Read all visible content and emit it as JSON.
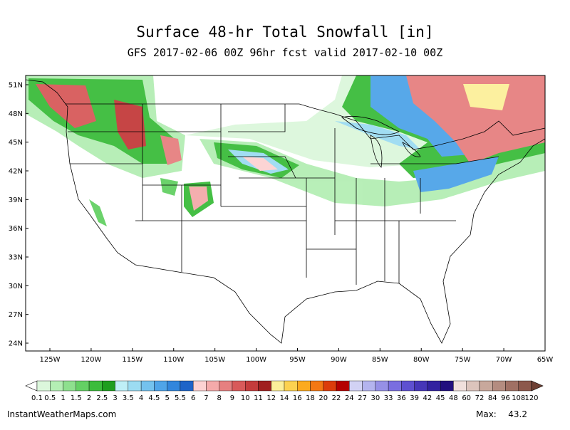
{
  "title": "Surface 48-hr Total Snowfall [in]",
  "subtitle": "GFS 2017-02-06 00Z 96hr fcst valid 2017-02-10 00Z",
  "latitude_labels": [
    "51N",
    "48N",
    "45N",
    "42N",
    "39N",
    "36N",
    "33N",
    "30N",
    "27N",
    "24N"
  ],
  "longitude_labels": [
    "125W",
    "120W",
    "115W",
    "110W",
    "105W",
    "100W",
    "95W",
    "90W",
    "85W",
    "80W",
    "75W",
    "70W",
    "65W"
  ],
  "colorbar": {
    "levels": [
      0.1,
      0.5,
      1,
      1.5,
      2,
      2.5,
      3,
      3.5,
      4,
      4.5,
      5,
      5.5,
      6,
      7,
      8,
      9,
      10,
      11,
      12,
      14,
      16,
      18,
      20,
      22,
      24,
      27,
      30,
      33,
      36,
      39,
      42,
      45,
      48,
      60,
      72,
      84,
      96,
      108,
      120
    ],
    "colors": [
      "#dcf7dc",
      "#b4eeb4",
      "#8ee08e",
      "#64d064",
      "#3cbc3c",
      "#1f9e1f",
      "#bfeff7",
      "#9cdcf2",
      "#74c2ee",
      "#4fa4e8",
      "#3286dc",
      "#1e64c8",
      "#fcd2d2",
      "#f4aaaa",
      "#e68080",
      "#d85a5a",
      "#c43c3c",
      "#a02020",
      "#fcf09a",
      "#fcd250",
      "#fcaa1e",
      "#f47814",
      "#dc3c0a",
      "#b40000",
      "#d2d2f4",
      "#b4b4ee",
      "#9690e6",
      "#7a6ee0",
      "#5e50d0",
      "#4636b8",
      "#3222a0",
      "#22107e",
      "#f0e0dc",
      "#dcc4bc",
      "#c8a89c",
      "#b48c80",
      "#a07064",
      "#8c584c"
    ],
    "under_color": "#ffffff",
    "over_color": "#6e4034"
  },
  "footer": "InstantWeatherMaps.com",
  "max_label": "Max:",
  "max_value": 43.2
}
